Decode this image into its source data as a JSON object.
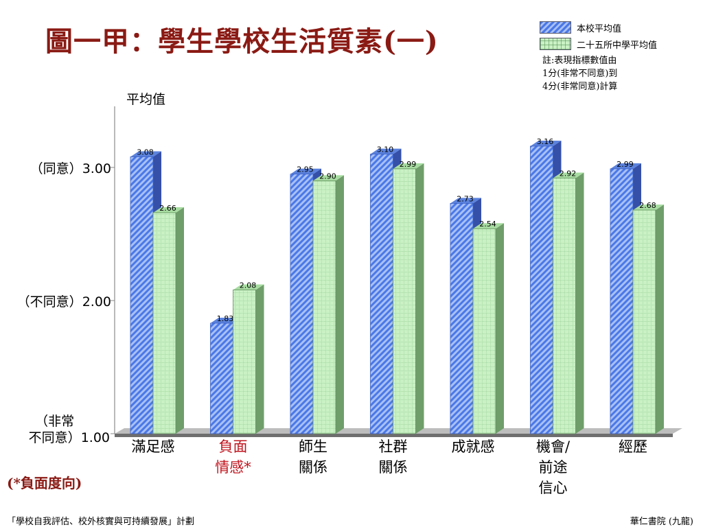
{
  "title": "圖一甲：學生學校生活質素(一)",
  "legend": {
    "items": [
      {
        "label": "本校平均值",
        "color": "#4a78e8"
      },
      {
        "label": "二十五所中學平均值",
        "color": "#c9f1c4"
      }
    ],
    "note": "註:表現指標數值由\n1分(非常不同意)到\n4分(非常同意)計算"
  },
  "y_axis_title": "平均值",
  "y_ticks": [
    {
      "value": 3.0,
      "label": "3.00",
      "category": "（同意）"
    },
    {
      "value": 2.0,
      "label": "2.00",
      "category": "（不同意）"
    },
    {
      "value": 1.0,
      "label": "1.00",
      "category": "（非常\n不同意）"
    }
  ],
  "negative_note": "(*負面度向)",
  "footer": {
    "left": "「學校自我評估、校外核實與可持續發展」計劃",
    "right": "華仁書院 (九龍)"
  },
  "chart_data": {
    "type": "bar",
    "title": "圖一甲：學生學校生活質素(一)",
    "ylabel": "平均值",
    "ylim": [
      1.0,
      3.5
    ],
    "y_ticks": [
      1.0,
      2.0,
      3.0
    ],
    "grid": false,
    "legend_position": "top-right",
    "categories": [
      "滿足感",
      "負面\n情感*",
      "師生\n關係",
      "社群\n關係",
      "成就感",
      "機會/\n前途\n信心",
      "經歷"
    ],
    "category_colors": [
      "#000000",
      "#c0141e",
      "#000000",
      "#000000",
      "#000000",
      "#000000",
      "#000000"
    ],
    "series": [
      {
        "name": "本校平均值",
        "color": "#4a78e8",
        "values": [
          3.08,
          1.83,
          2.95,
          3.1,
          2.73,
          3.16,
          2.99
        ]
      },
      {
        "name": "二十五所中學平均值",
        "color": "#c9f1c4",
        "values": [
          2.66,
          2.08,
          2.9,
          2.99,
          2.54,
          2.92,
          2.68
        ]
      }
    ]
  }
}
